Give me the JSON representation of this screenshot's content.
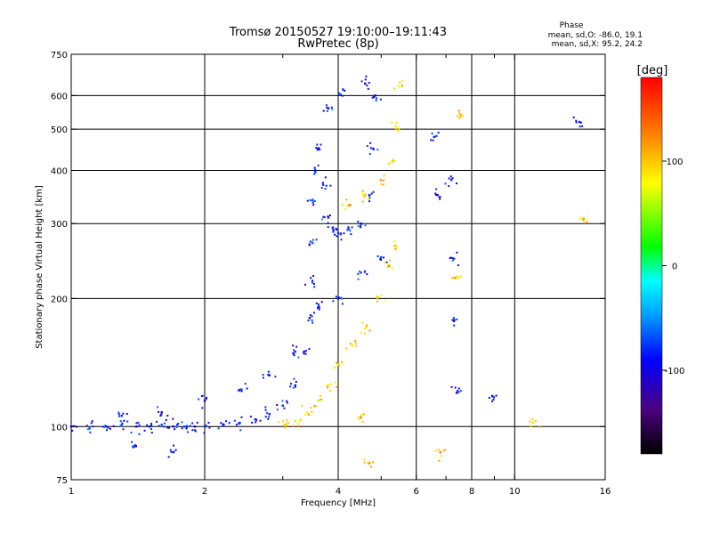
{
  "chart_data": {
    "type": "scatter",
    "title": "Tromsø 20150527 19:10:00–19:11:43",
    "subtitle": "RwPretec (8p)",
    "phase_box": {
      "heading": "Phase",
      "line_o": "mean, sd,O: -86.0, 19.1",
      "line_x": "mean, sd,X:  95.2, 24.2"
    },
    "xlabel": "Frequency [MHz]",
    "ylabel": "Stationary phase Virtual Height [km]",
    "xscale": "log",
    "yscale": "log",
    "xlim": [
      1,
      16
    ],
    "ylim": [
      75,
      750
    ],
    "xticks": [
      1,
      2,
      4,
      6,
      8,
      10,
      16
    ],
    "xtick_labels": [
      "1",
      "2",
      "4",
      "6",
      "8",
      "10",
      "16"
    ],
    "x_minor_ticks": [
      3,
      5,
      7,
      9
    ],
    "yticks": [
      75,
      100,
      200,
      300,
      400,
      500,
      600,
      750
    ],
    "ytick_labels": [
      "75",
      "100",
      "200",
      "300",
      "400",
      "500",
      "600",
      "750"
    ],
    "vertical_grid": [
      2,
      4,
      6,
      8,
      10
    ],
    "horizontal_grid": [
      100,
      200,
      300,
      400,
      500,
      600
    ],
    "colorbar": {
      "label": "[deg]",
      "range": [
        -180,
        180
      ],
      "ticks": [
        100,
        0,
        -100
      ],
      "tick_labels": [
        "100",
        "0",
        "-100"
      ]
    },
    "series": [
      {
        "mode": "O",
        "phase_mean": -86.0,
        "phase_sd": 19.1,
        "points": [
          {
            "x": 1.0,
            "y": 100
          },
          {
            "x": 1.1,
            "y": 99
          },
          {
            "x": 1.2,
            "y": 100
          },
          {
            "x": 1.3,
            "y": 101
          },
          {
            "x": 1.4,
            "y": 100
          },
          {
            "x": 1.5,
            "y": 100
          },
          {
            "x": 1.6,
            "y": 101
          },
          {
            "x": 1.7,
            "y": 100
          },
          {
            "x": 1.8,
            "y": 100
          },
          {
            "x": 1.9,
            "y": 100
          },
          {
            "x": 2.0,
            "y": 100
          },
          {
            "x": 2.2,
            "y": 101
          },
          {
            "x": 2.4,
            "y": 102
          },
          {
            "x": 2.6,
            "y": 104
          },
          {
            "x": 2.8,
            "y": 107
          },
          {
            "x": 3.0,
            "y": 112
          },
          {
            "x": 3.2,
            "y": 125
          },
          {
            "x": 3.35,
            "y": 150
          },
          {
            "x": 3.45,
            "y": 180
          },
          {
            "x": 3.5,
            "y": 220
          },
          {
            "x": 3.5,
            "y": 270
          },
          {
            "x": 3.5,
            "y": 340
          },
          {
            "x": 3.55,
            "y": 400
          },
          {
            "x": 3.6,
            "y": 450
          },
          {
            "x": 3.7,
            "y": 370
          },
          {
            "x": 3.8,
            "y": 310
          },
          {
            "x": 3.9,
            "y": 290
          },
          {
            "x": 4.0,
            "y": 285
          },
          {
            "x": 4.2,
            "y": 290
          },
          {
            "x": 4.5,
            "y": 300
          },
          {
            "x": 4.7,
            "y": 350
          },
          {
            "x": 4.8,
            "y": 450
          },
          {
            "x": 4.85,
            "y": 600
          },
          {
            "x": 1.3,
            "y": 106
          },
          {
            "x": 1.6,
            "y": 108
          },
          {
            "x": 2.0,
            "y": 115
          },
          {
            "x": 2.4,
            "y": 122
          },
          {
            "x": 2.8,
            "y": 132
          },
          {
            "x": 3.2,
            "y": 150
          },
          {
            "x": 3.6,
            "y": 190
          },
          {
            "x": 4.0,
            "y": 200
          },
          {
            "x": 4.5,
            "y": 230
          },
          {
            "x": 5.0,
            "y": 250
          },
          {
            "x": 1.4,
            "y": 90
          },
          {
            "x": 1.7,
            "y": 87
          },
          {
            "x": 3.8,
            "y": 560
          },
          {
            "x": 4.1,
            "y": 620
          },
          {
            "x": 4.6,
            "y": 640
          },
          {
            "x": 6.6,
            "y": 480
          },
          {
            "x": 6.7,
            "y": 350
          },
          {
            "x": 7.2,
            "y": 380
          },
          {
            "x": 7.3,
            "y": 248
          },
          {
            "x": 7.3,
            "y": 177
          },
          {
            "x": 7.4,
            "y": 120
          },
          {
            "x": 8.9,
            "y": 118
          },
          {
            "x": 14.0,
            "y": 520
          }
        ]
      },
      {
        "mode": "X",
        "phase_mean": 95.2,
        "phase_sd": 24.2,
        "points": [
          {
            "x": 3.05,
            "y": 101
          },
          {
            "x": 3.2,
            "y": 103
          },
          {
            "x": 3.4,
            "y": 108
          },
          {
            "x": 3.6,
            "y": 115
          },
          {
            "x": 3.8,
            "y": 125
          },
          {
            "x": 4.0,
            "y": 140
          },
          {
            "x": 4.3,
            "y": 155
          },
          {
            "x": 4.6,
            "y": 170
          },
          {
            "x": 4.9,
            "y": 200
          },
          {
            "x": 5.2,
            "y": 240
          },
          {
            "x": 5.4,
            "y": 265
          },
          {
            "x": 4.2,
            "y": 330
          },
          {
            "x": 4.6,
            "y": 350
          },
          {
            "x": 5.0,
            "y": 380
          },
          {
            "x": 5.3,
            "y": 420
          },
          {
            "x": 5.4,
            "y": 500
          },
          {
            "x": 5.5,
            "y": 630
          },
          {
            "x": 7.5,
            "y": 545
          },
          {
            "x": 7.4,
            "y": 225
          },
          {
            "x": 11.0,
            "y": 102
          },
          {
            "x": 4.5,
            "y": 105
          },
          {
            "x": 4.7,
            "y": 82
          },
          {
            "x": 6.8,
            "y": 87
          },
          {
            "x": 14.3,
            "y": 305
          }
        ]
      }
    ]
  }
}
